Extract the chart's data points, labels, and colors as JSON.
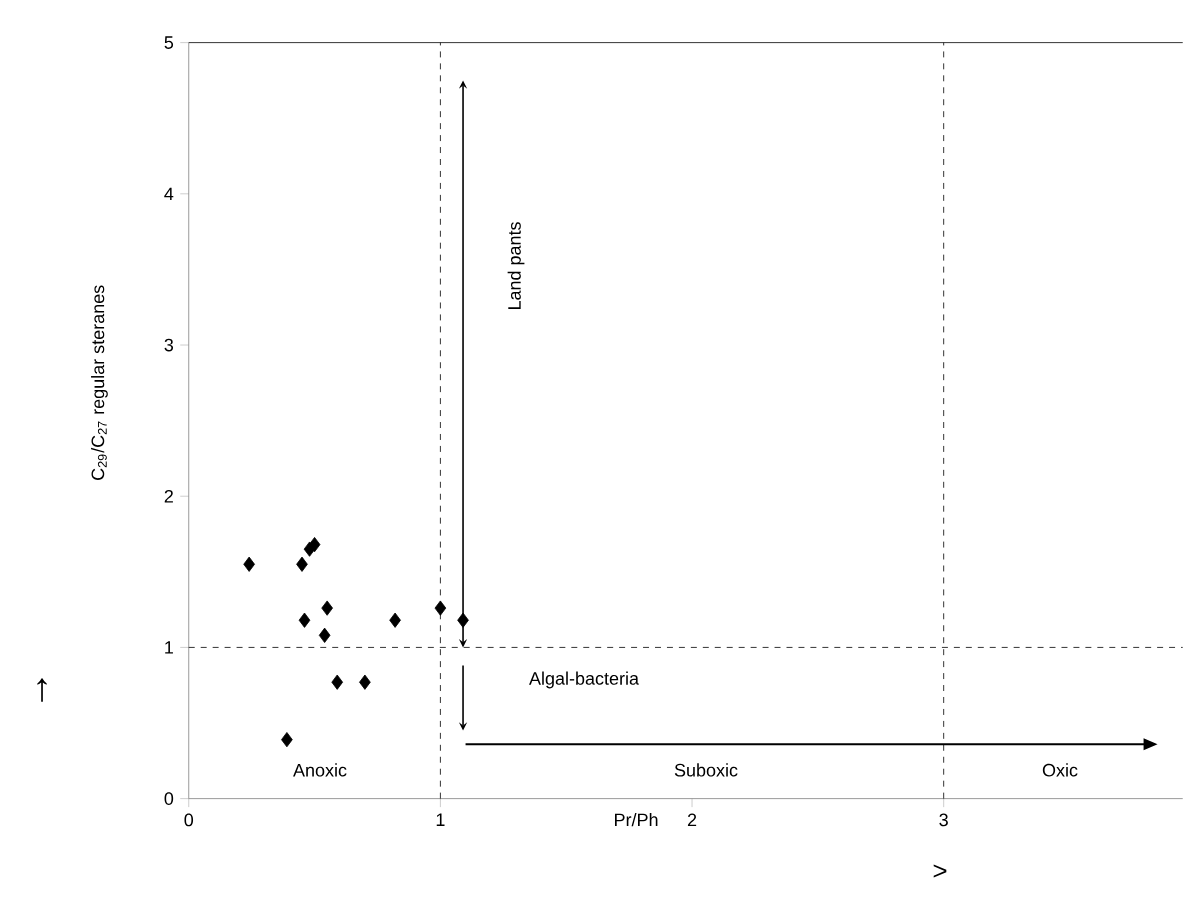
{
  "chart_data": {
    "type": "scatter",
    "xlabel": "Pr/Ph",
    "ylabel": "C$_{29}$/C$_{27}$ regular steranes",
    "x": [
      0.24,
      0.45,
      0.48,
      0.5,
      0.55,
      0.46,
      0.54,
      0.59,
      0.7,
      0.39,
      0.82,
      1.0,
      1.09
    ],
    "values": [
      1.55,
      1.55,
      1.65,
      1.68,
      1.26,
      1.18,
      1.08,
      0.77,
      0.77,
      0.39,
      1.18,
      1.26,
      1.18
    ],
    "color": "#000000",
    "marker": "diamond",
    "xlim": [
      0,
      3.95
    ],
    "ylim": [
      0,
      5
    ],
    "xticks": [
      0,
      1,
      2,
      3
    ],
    "yticks": [
      0,
      1,
      2,
      3,
      4,
      5
    ],
    "grid": false,
    "ref_lines": [
      {
        "axis": "x",
        "value": 1,
        "color": "#000000",
        "line_style": "dashed"
      },
      {
        "axis": "x",
        "value": 3,
        "color": "#000000",
        "line_style": "dashed"
      },
      {
        "axis": "y",
        "value": 1,
        "color": "#000000",
        "line_style": "dashed"
      }
    ],
    "annotations": [
      "Land pants",
      "Algal-bacteria",
      "Anoxic",
      "Suboxic",
      "Oxic",
      "↑",
      ">"
    ]
  }
}
